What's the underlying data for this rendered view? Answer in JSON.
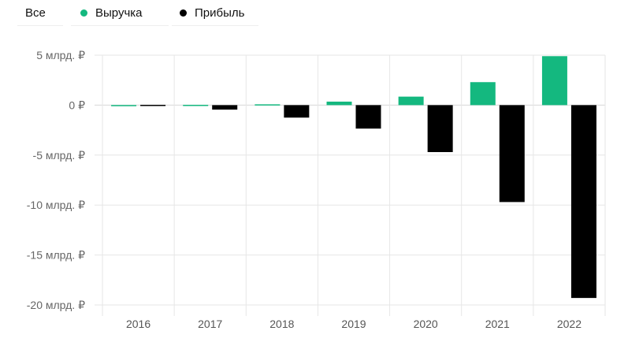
{
  "legend": {
    "all_label": "Все",
    "items": [
      {
        "label": "Выручка",
        "color": "#14b87f"
      },
      {
        "label": "Прибыль",
        "color": "#000000"
      }
    ]
  },
  "chart_data": {
    "type": "bar",
    "categories": [
      "2016",
      "2017",
      "2018",
      "2019",
      "2020",
      "2021",
      "2022"
    ],
    "series": [
      {
        "name": "Выручка",
        "color": "#14b87f",
        "values": [
          0.01,
          0.03,
          0.08,
          0.35,
          0.85,
          2.3,
          4.9
        ]
      },
      {
        "name": "Прибыль",
        "color": "#000000",
        "values": [
          0.03,
          -0.45,
          -1.25,
          -2.35,
          -4.7,
          -9.7,
          -19.3
        ]
      }
    ],
    "ylim": [
      -20,
      5
    ],
    "yticks": [
      {
        "value": 5,
        "label": "5 млрд. ₽"
      },
      {
        "value": 0,
        "label": "0 ₽"
      },
      {
        "value": -5,
        "label": "-5 млрд. ₽"
      },
      {
        "value": -10,
        "label": "-10 млрд. ₽"
      },
      {
        "value": -15,
        "label": "-15 млрд. ₽"
      },
      {
        "value": -20,
        "label": "-20 млрд. ₽"
      }
    ],
    "grid": true,
    "legend_position": "top-left"
  }
}
